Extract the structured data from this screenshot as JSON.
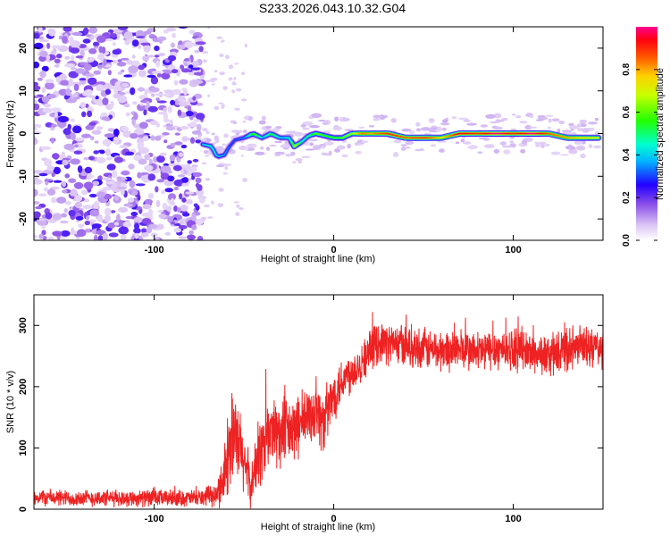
{
  "title": "S233.2026.043.10.32.G04",
  "chart_data": [
    {
      "type": "heatmap",
      "name": "spectrogram",
      "xlabel": "Height of straight line (km)",
      "ylabel": "Frequency (Hz)",
      "xlim": [
        -167,
        150
      ],
      "ylim": [
        -25,
        25
      ],
      "xticks": [
        -100,
        0,
        100
      ],
      "yticks": [
        -20,
        -10,
        0,
        10,
        20
      ],
      "colorbar": {
        "label": "Normalized spectral amplitude",
        "range": [
          0,
          1
        ],
        "ticks": [
          0.0,
          0.2,
          0.4,
          0.6,
          0.8
        ]
      },
      "noise_region": {
        "x": [
          -167,
          -73
        ],
        "y": [
          -25,
          25
        ]
      },
      "ridge": {
        "x": [
          -73,
          -68,
          -65,
          -61,
          -58,
          -55,
          -50,
          -45,
          -40,
          -35,
          -30,
          -25,
          -22,
          -18,
          -14,
          -10,
          -5,
          0,
          5,
          10,
          15,
          20,
          30,
          40,
          50,
          60,
          70,
          80,
          90,
          100,
          110,
          120,
          130,
          140,
          147
        ],
        "frequency": [
          -2.5,
          -3,
          -5.5,
          -5,
          -3,
          -1.5,
          -1,
          0,
          -1,
          0,
          -1,
          -1,
          -3,
          -2,
          -0.5,
          0,
          -0.5,
          -1,
          -1,
          0,
          0,
          0,
          0,
          -1,
          -1,
          -1,
          0,
          0,
          0,
          0,
          0,
          0,
          -1,
          -1,
          -1
        ],
        "amplitude": [
          0.4,
          0.45,
          0.4,
          0.35,
          0.3,
          0.3,
          0.35,
          0.6,
          0.4,
          0.55,
          0.4,
          0.45,
          0.7,
          0.45,
          0.5,
          0.6,
          0.55,
          0.55,
          0.6,
          0.65,
          0.85,
          0.8,
          0.9,
          0.85,
          0.9,
          0.75,
          0.95,
          0.9,
          1.0,
          0.9,
          1.0,
          0.85,
          0.8,
          0.75,
          0.7
        ]
      }
    },
    {
      "type": "line",
      "name": "snr",
      "xlabel": "Height of straight line (km)",
      "ylabel": "SNR (10 * v/v)",
      "xlim": [
        -167,
        150
      ],
      "ylim": [
        0,
        350
      ],
      "xticks": [
        -100,
        0,
        100
      ],
      "yticks": [
        0,
        100,
        200,
        300
      ],
      "color": "#ee2222",
      "series": [
        {
          "name": "SNR",
          "x": [
            -167,
            -150,
            -130,
            -110,
            -90,
            -75,
            -65,
            -60,
            -57,
            -53,
            -50,
            -46,
            -42,
            -38,
            -34,
            -30,
            -26,
            -22,
            -18,
            -14,
            -10,
            -6,
            -2,
            2,
            6,
            10,
            14,
            18,
            22,
            26,
            30,
            40,
            50,
            60,
            70,
            80,
            90,
            100,
            110,
            120,
            130,
            140,
            150
          ],
          "y": [
            20,
            18,
            18,
            18,
            18,
            18,
            22,
            70,
            120,
            100,
            80,
            35,
            90,
            110,
            130,
            120,
            125,
            130,
            140,
            150,
            165,
            140,
            170,
            200,
            215,
            225,
            235,
            250,
            265,
            275,
            270,
            268,
            262,
            258,
            262,
            256,
            262,
            262,
            256,
            250,
            260,
            265,
            262
          ],
          "noise_amplitude": [
            16,
            16,
            16,
            16,
            16,
            16,
            22,
            70,
            90,
            80,
            70,
            40,
            70,
            80,
            70,
            70,
            70,
            60,
            60,
            60,
            60,
            60,
            55,
            50,
            45,
            40,
            40,
            40,
            40,
            40,
            40,
            40,
            40,
            40,
            40,
            40,
            40,
            40,
            40,
            40,
            40,
            40,
            40
          ]
        }
      ]
    }
  ]
}
